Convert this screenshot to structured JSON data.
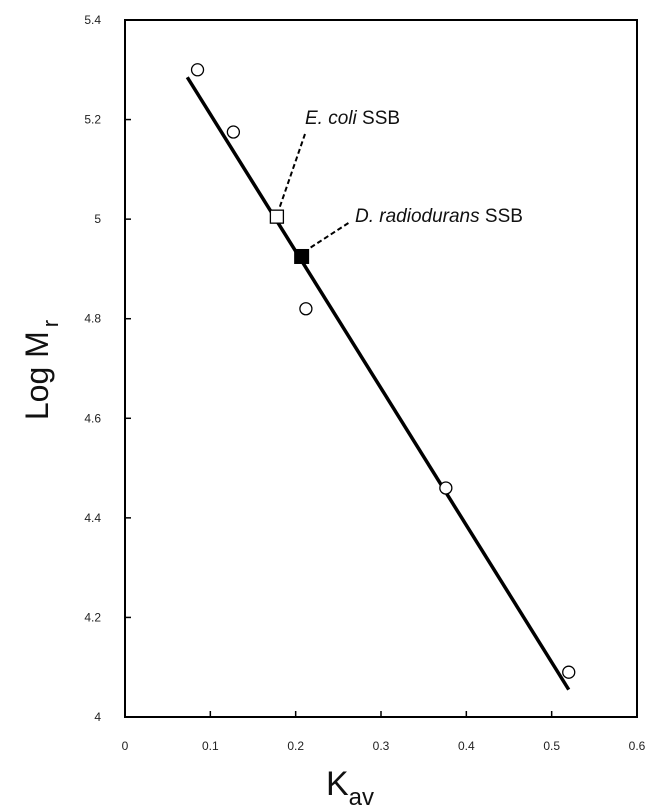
{
  "chart_data": {
    "type": "scatter",
    "xlabel": "K",
    "xlabel_sub": "av",
    "ylabel": "Log M",
    "ylabel_sub": "r",
    "xlim": [
      0,
      0.6
    ],
    "ylim": [
      4,
      5.4
    ],
    "x_ticks": [
      "0",
      "0.1",
      "0.2",
      "0.3",
      "0.4",
      "0.5",
      "0.6"
    ],
    "y_ticks": [
      "4",
      "4.2",
      "4.4",
      "4.6",
      "4.8",
      "5",
      "5.2",
      "5.4"
    ],
    "grid": false,
    "series": [
      {
        "marker": "open-circle",
        "points": [
          {
            "x": 0.085,
            "y": 5.3
          },
          {
            "x": 0.127,
            "y": 5.175
          },
          {
            "x": 0.212,
            "y": 4.82
          },
          {
            "x": 0.376,
            "y": 4.46
          },
          {
            "x": 0.52,
            "y": 4.09
          }
        ]
      },
      {
        "name_italic": "E. coli",
        "name_rest": " SSB",
        "marker": "open-square",
        "points": [
          {
            "x": 0.178,
            "y": 5.005
          }
        ]
      },
      {
        "name_italic": "D. radiodurans",
        "name_rest": " SSB",
        "marker": "filled-square",
        "points": [
          {
            "x": 0.207,
            "y": 4.925
          }
        ]
      }
    ],
    "fit_line": {
      "x": [
        0.073,
        0.52
      ],
      "y": [
        5.285,
        4.055
      ]
    }
  }
}
